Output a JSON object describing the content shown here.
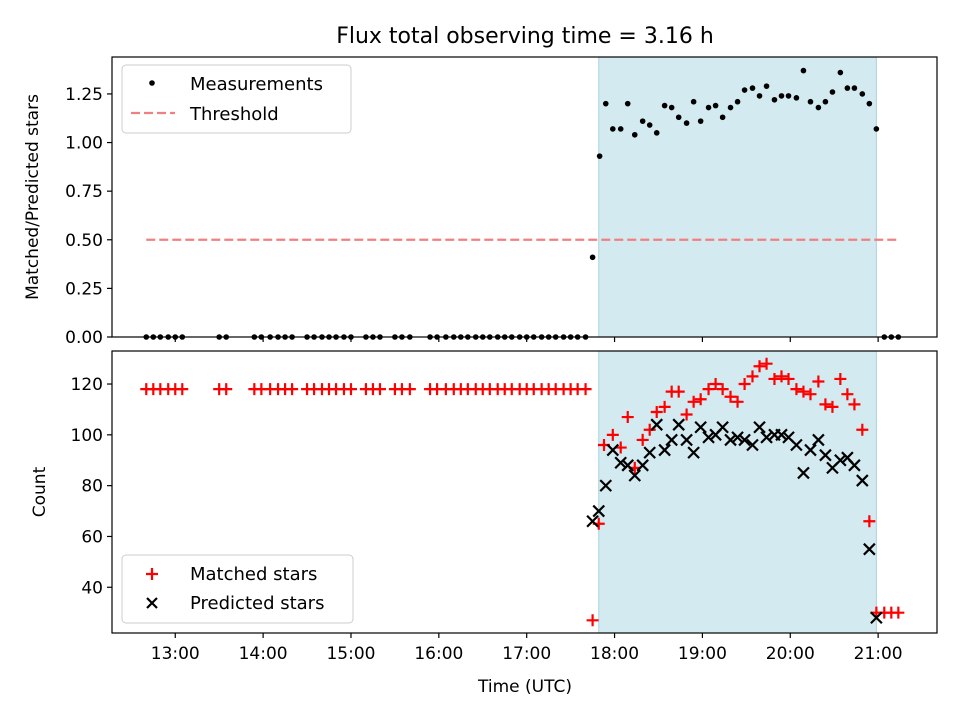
{
  "title": "Flux total observing time = 3.16 h",
  "shade_color": "#d3eaf0",
  "chart_data": [
    {
      "type": "scatter",
      "title": "Flux total observing time = 3.16 h",
      "xlabel": "",
      "ylabel": "Matched/Predicted stars",
      "xlim": [
        12.28,
        21.67
      ],
      "ylim": [
        0,
        1.44
      ],
      "xticks": [
        13,
        14,
        15,
        16,
        17,
        18,
        19,
        20,
        21
      ],
      "yticks": [
        0.0,
        0.25,
        0.5,
        0.75,
        1.0,
        1.25
      ],
      "ytick_labels": [
        "0.00",
        "0.25",
        "0.50",
        "0.75",
        "1.00",
        "1.25"
      ],
      "shaded_region": [
        17.82,
        20.98
      ],
      "legend": {
        "location": "top-left",
        "entries": [
          {
            "label": "Measurements",
            "marker": "dot",
            "color": "#000000"
          },
          {
            "label": "Threshold",
            "marker": "dashed-line",
            "color": "#f08080"
          }
        ]
      },
      "threshold": {
        "value": 0.5,
        "x": [
          12.67,
          21.25
        ],
        "color": "#f08080"
      },
      "series": [
        {
          "name": "Measurements",
          "color": "#000000",
          "x": [
            12.67,
            12.75,
            12.83,
            12.92,
            13.0,
            13.08,
            13.5,
            13.58,
            13.9,
            13.98,
            14.08,
            14.17,
            14.25,
            14.33,
            14.5,
            14.58,
            14.67,
            14.75,
            14.83,
            14.92,
            15.0,
            15.17,
            15.25,
            15.33,
            15.5,
            15.58,
            15.67,
            15.9,
            15.98,
            16.08,
            16.17,
            16.25,
            16.33,
            16.42,
            16.5,
            16.58,
            16.67,
            16.75,
            16.83,
            16.92,
            17.0,
            17.08,
            17.17,
            17.25,
            17.33,
            17.42,
            17.5,
            17.58,
            17.67,
            17.75,
            17.83,
            17.9,
            17.98,
            18.07,
            18.15,
            18.23,
            18.32,
            18.4,
            18.48,
            18.57,
            18.65,
            18.73,
            18.82,
            18.9,
            18.98,
            19.07,
            19.15,
            19.23,
            19.32,
            19.4,
            19.48,
            19.57,
            19.65,
            19.73,
            19.82,
            19.9,
            19.98,
            20.07,
            20.15,
            20.23,
            20.32,
            20.4,
            20.48,
            20.57,
            20.65,
            20.73,
            20.82,
            20.9,
            20.98,
            21.07,
            21.15,
            21.23
          ],
          "y": [
            0,
            0,
            0,
            0,
            0,
            0,
            0,
            0,
            0,
            0,
            0,
            0,
            0,
            0,
            0,
            0,
            0,
            0,
            0,
            0,
            0,
            0,
            0,
            0,
            0,
            0,
            0,
            0,
            0,
            0,
            0,
            0,
            0,
            0,
            0,
            0,
            0,
            0,
            0,
            0,
            0,
            0,
            0,
            0,
            0,
            0,
            0,
            0,
            0,
            0.41,
            0.93,
            1.2,
            1.07,
            1.07,
            1.2,
            1.04,
            1.11,
            1.09,
            1.05,
            1.19,
            1.18,
            1.13,
            1.1,
            1.21,
            1.11,
            1.18,
            1.19,
            1.13,
            1.18,
            1.21,
            1.27,
            1.28,
            1.24,
            1.29,
            1.22,
            1.24,
            1.24,
            1.23,
            1.37,
            1.21,
            1.18,
            1.21,
            1.26,
            1.36,
            1.28,
            1.28,
            1.25,
            1.2,
            1.07,
            0,
            0,
            0
          ]
        }
      ]
    },
    {
      "type": "scatter",
      "xlabel": "Time (UTC)",
      "ylabel": "Count",
      "xlim": [
        12.28,
        21.67
      ],
      "ylim": [
        22,
        133
      ],
      "xticks": [
        13,
        14,
        15,
        16,
        17,
        18,
        19,
        20,
        21
      ],
      "xtick_labels": [
        "13:00",
        "14:00",
        "15:00",
        "16:00",
        "17:00",
        "18:00",
        "19:00",
        "20:00",
        "21:00"
      ],
      "yticks": [
        40,
        60,
        80,
        100,
        120
      ],
      "ytick_labels": [
        "40",
        "60",
        "80",
        "100",
        "120"
      ],
      "shaded_region": [
        17.82,
        20.98
      ],
      "legend": {
        "location": "bottom-left",
        "entries": [
          {
            "label": "Matched stars",
            "marker": "plus",
            "color": "#ff0000"
          },
          {
            "label": "Predicted stars",
            "marker": "x",
            "color": "#000000"
          }
        ]
      },
      "series": [
        {
          "name": "Matched stars",
          "marker": "plus",
          "color": "#ff0000",
          "x": [
            12.67,
            12.75,
            12.83,
            12.92,
            13.0,
            13.08,
            13.5,
            13.58,
            13.9,
            13.98,
            14.08,
            14.17,
            14.25,
            14.33,
            14.5,
            14.58,
            14.67,
            14.75,
            14.83,
            14.92,
            15.0,
            15.17,
            15.25,
            15.33,
            15.5,
            15.58,
            15.67,
            15.9,
            15.98,
            16.08,
            16.17,
            16.25,
            16.33,
            16.42,
            16.5,
            16.58,
            16.67,
            16.75,
            16.83,
            16.92,
            17.0,
            17.08,
            17.17,
            17.25,
            17.33,
            17.42,
            17.5,
            17.58,
            17.67,
            17.75,
            17.82,
            17.88,
            17.98,
            18.07,
            18.15,
            18.23,
            18.32,
            18.4,
            18.48,
            18.57,
            18.65,
            18.73,
            18.82,
            18.9,
            18.98,
            19.07,
            19.15,
            19.23,
            19.32,
            19.4,
            19.48,
            19.57,
            19.65,
            19.73,
            19.82,
            19.9,
            19.98,
            20.07,
            20.15,
            20.23,
            20.32,
            20.4,
            20.48,
            20.57,
            20.65,
            20.73,
            20.82,
            20.9,
            20.98,
            21.07,
            21.15,
            21.23
          ],
          "y": [
            118,
            118,
            118,
            118,
            118,
            118,
            118,
            118,
            118,
            118,
            118,
            118,
            118,
            118,
            118,
            118,
            118,
            118,
            118,
            118,
            118,
            118,
            118,
            118,
            118,
            118,
            118,
            118,
            118,
            118,
            118,
            118,
            118,
            118,
            118,
            118,
            118,
            118,
            118,
            118,
            118,
            118,
            118,
            118,
            118,
            118,
            118,
            118,
            118,
            27,
            65,
            96,
            100,
            95,
            107,
            87,
            98,
            102,
            109,
            111,
            117,
            117,
            108,
            113,
            114,
            118,
            120,
            118,
            115,
            113,
            120,
            123,
            127,
            128,
            122,
            123,
            122,
            118,
            117,
            116,
            121,
            112,
            111,
            122,
            116,
            112,
            102,
            66,
            30,
            30,
            30,
            30
          ]
        },
        {
          "name": "Predicted stars",
          "marker": "x",
          "color": "#000000",
          "x": [
            17.75,
            17.82,
            17.9,
            17.98,
            18.07,
            18.15,
            18.23,
            18.32,
            18.4,
            18.48,
            18.57,
            18.65,
            18.73,
            18.82,
            18.9,
            18.98,
            19.07,
            19.15,
            19.23,
            19.32,
            19.4,
            19.48,
            19.57,
            19.65,
            19.73,
            19.82,
            19.9,
            19.98,
            20.07,
            20.15,
            20.23,
            20.32,
            20.4,
            20.48,
            20.57,
            20.65,
            20.73,
            20.82,
            20.9,
            20.98
          ],
          "y": [
            66,
            70,
            80,
            94,
            89,
            88,
            84,
            88,
            93,
            104,
            94,
            98,
            104,
            98,
            93,
            103,
            99,
            100,
            103,
            98,
            99,
            98,
            96,
            103,
            99,
            100,
            100,
            99,
            96,
            85,
            94,
            98,
            92,
            87,
            90,
            91,
            88,
            82,
            55,
            28
          ]
        }
      ]
    }
  ]
}
